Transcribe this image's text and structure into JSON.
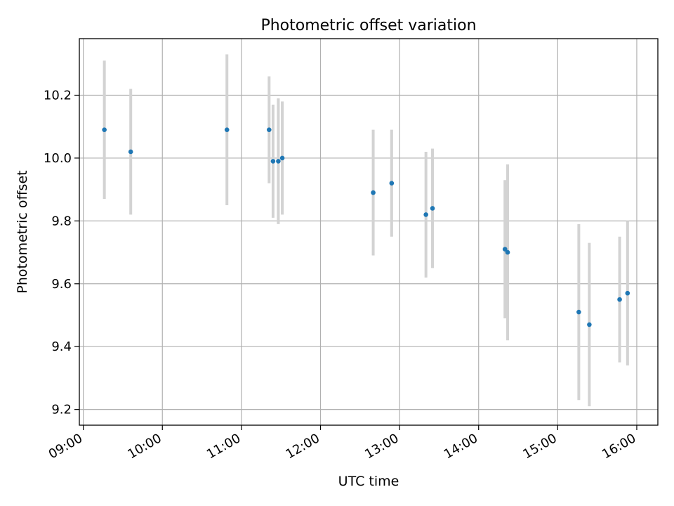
{
  "chart_data": {
    "type": "scatter",
    "title": "Photometric offset variation",
    "xlabel": "UTC time",
    "ylabel": "Photometric offset",
    "x_tick_labels": [
      "09:00",
      "10:00",
      "11:00",
      "12:00",
      "13:00",
      "14:00",
      "15:00",
      "16:00"
    ],
    "y_tick_labels": [
      "9.2",
      "9.4",
      "9.6",
      "9.8",
      "10.0",
      "10.2"
    ],
    "xlim": [
      "08:57",
      "16:16"
    ],
    "ylim": [
      9.15,
      10.38
    ],
    "grid": true,
    "series": [
      {
        "marker_color": "#1f77b4",
        "errorbar_color": "#d3d3d3",
        "points": [
          {
            "x": "09:16",
            "y": 10.09,
            "yerr": 0.22
          },
          {
            "x": "09:36",
            "y": 10.02,
            "yerr": 0.2
          },
          {
            "x": "10:49",
            "y": 10.09,
            "yerr": 0.24
          },
          {
            "x": "11:21",
            "y": 10.09,
            "yerr": 0.17
          },
          {
            "x": "11:24",
            "y": 9.99,
            "yerr": 0.18
          },
          {
            "x": "11:28",
            "y": 9.99,
            "yerr": 0.2
          },
          {
            "x": "11:31",
            "y": 10.0,
            "yerr": 0.18
          },
          {
            "x": "12:40",
            "y": 9.89,
            "yerr": 0.2
          },
          {
            "x": "12:54",
            "y": 9.92,
            "yerr": 0.17
          },
          {
            "x": "13:20",
            "y": 9.82,
            "yerr": 0.2
          },
          {
            "x": "13:25",
            "y": 9.84,
            "yerr": 0.19
          },
          {
            "x": "14:20",
            "y": 9.71,
            "yerr": 0.22
          },
          {
            "x": "14:22",
            "y": 9.7,
            "yerr": 0.28
          },
          {
            "x": "15:16",
            "y": 9.51,
            "yerr": 0.28
          },
          {
            "x": "15:24",
            "y": 9.47,
            "yerr": 0.26
          },
          {
            "x": "15:47",
            "y": 9.55,
            "yerr": 0.2
          },
          {
            "x": "15:53",
            "y": 9.57,
            "yerr": 0.23
          }
        ]
      }
    ]
  }
}
